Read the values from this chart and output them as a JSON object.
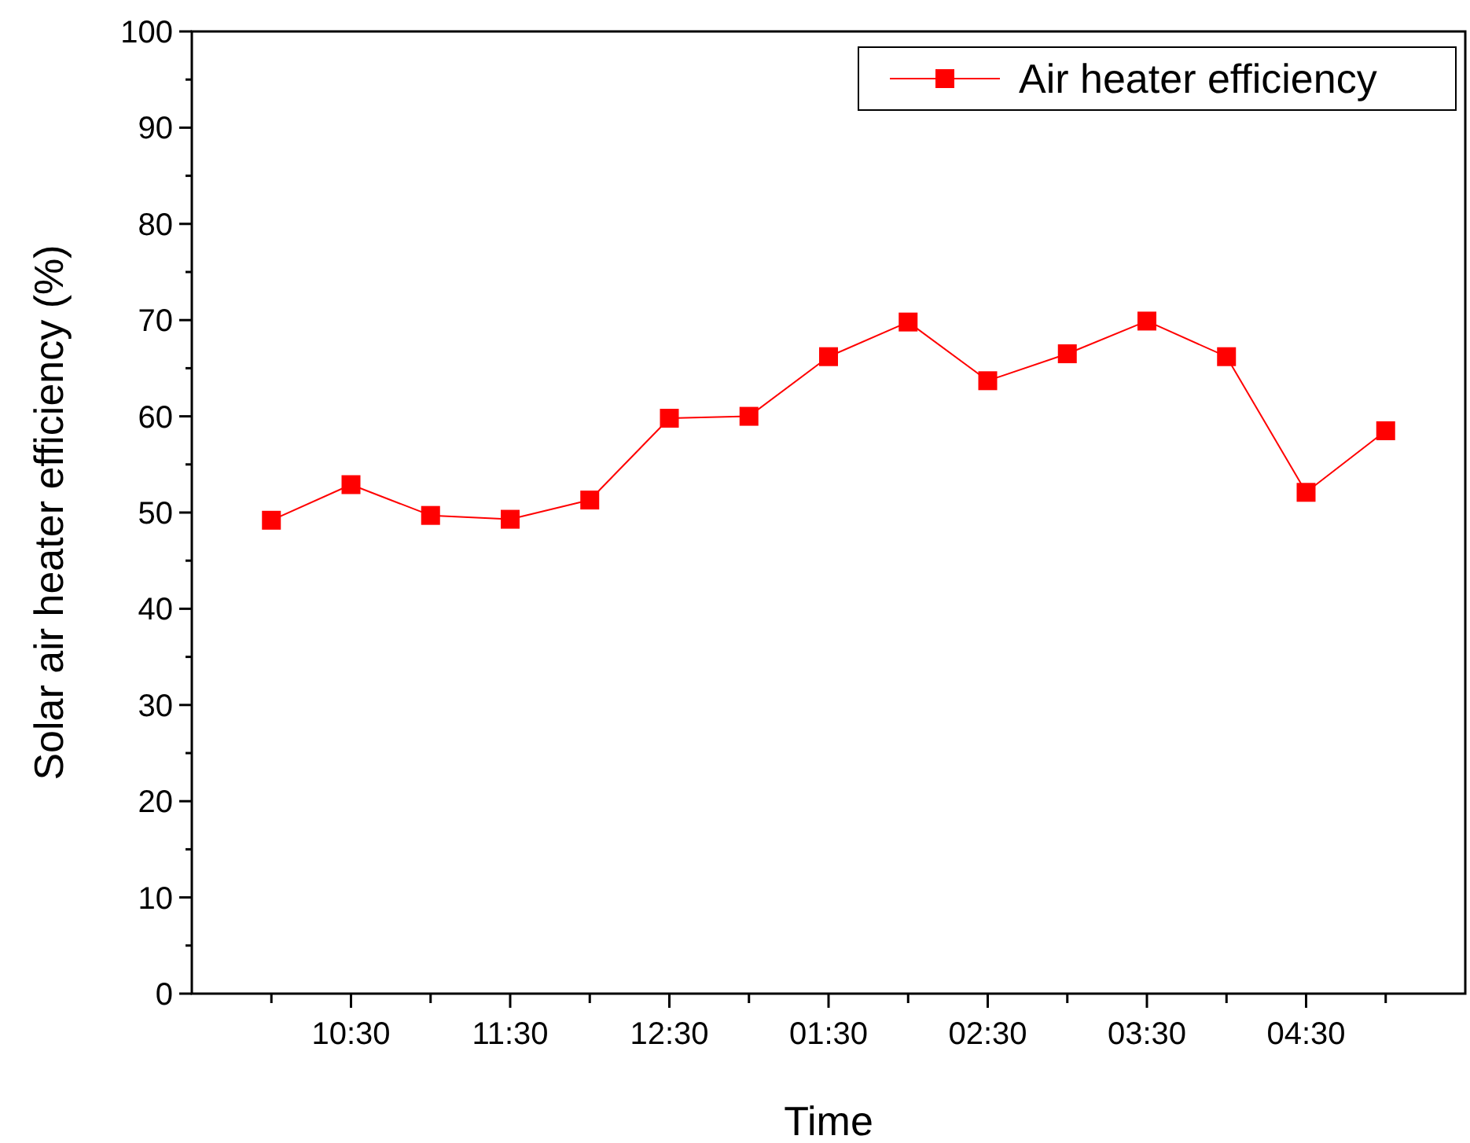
{
  "chart_data": {
    "type": "line",
    "xlabel": "Time",
    "ylabel": "Solar air heater efficiency (%)",
    "categories": [
      null,
      "10:30",
      null,
      "11:30",
      null,
      "12:30",
      null,
      "01:30",
      null,
      "02:30",
      null,
      "03:30",
      null,
      "04:30",
      null
    ],
    "series": [
      {
        "name": "Air heater efficiency",
        "color": "#ff0000",
        "values": [
          49.2,
          52.9,
          49.7,
          49.3,
          51.3,
          59.8,
          60.0,
          66.2,
          69.8,
          63.7,
          66.5,
          69.9,
          66.2,
          52.1,
          58.5
        ]
      }
    ],
    "ylim": [
      0,
      100
    ],
    "yticks": [
      0,
      {
        "value": 5,
        "label": null
      },
      10,
      {
        "value": 15,
        "label": null
      },
      20,
      {
        "value": 25,
        "label": null
      },
      30,
      {
        "value": 35,
        "label": null
      },
      40,
      {
        "value": 45,
        "label": null
      },
      50,
      {
        "value": 55,
        "label": null
      },
      60,
      {
        "value": 65,
        "label": null
      },
      70,
      {
        "value": 75,
        "label": null
      },
      80,
      {
        "value": 85,
        "label": null
      },
      90,
      {
        "value": 95,
        "label": null
      },
      100
    ],
    "legend": "top right",
    "marker": "square",
    "line_style": "solid"
  }
}
